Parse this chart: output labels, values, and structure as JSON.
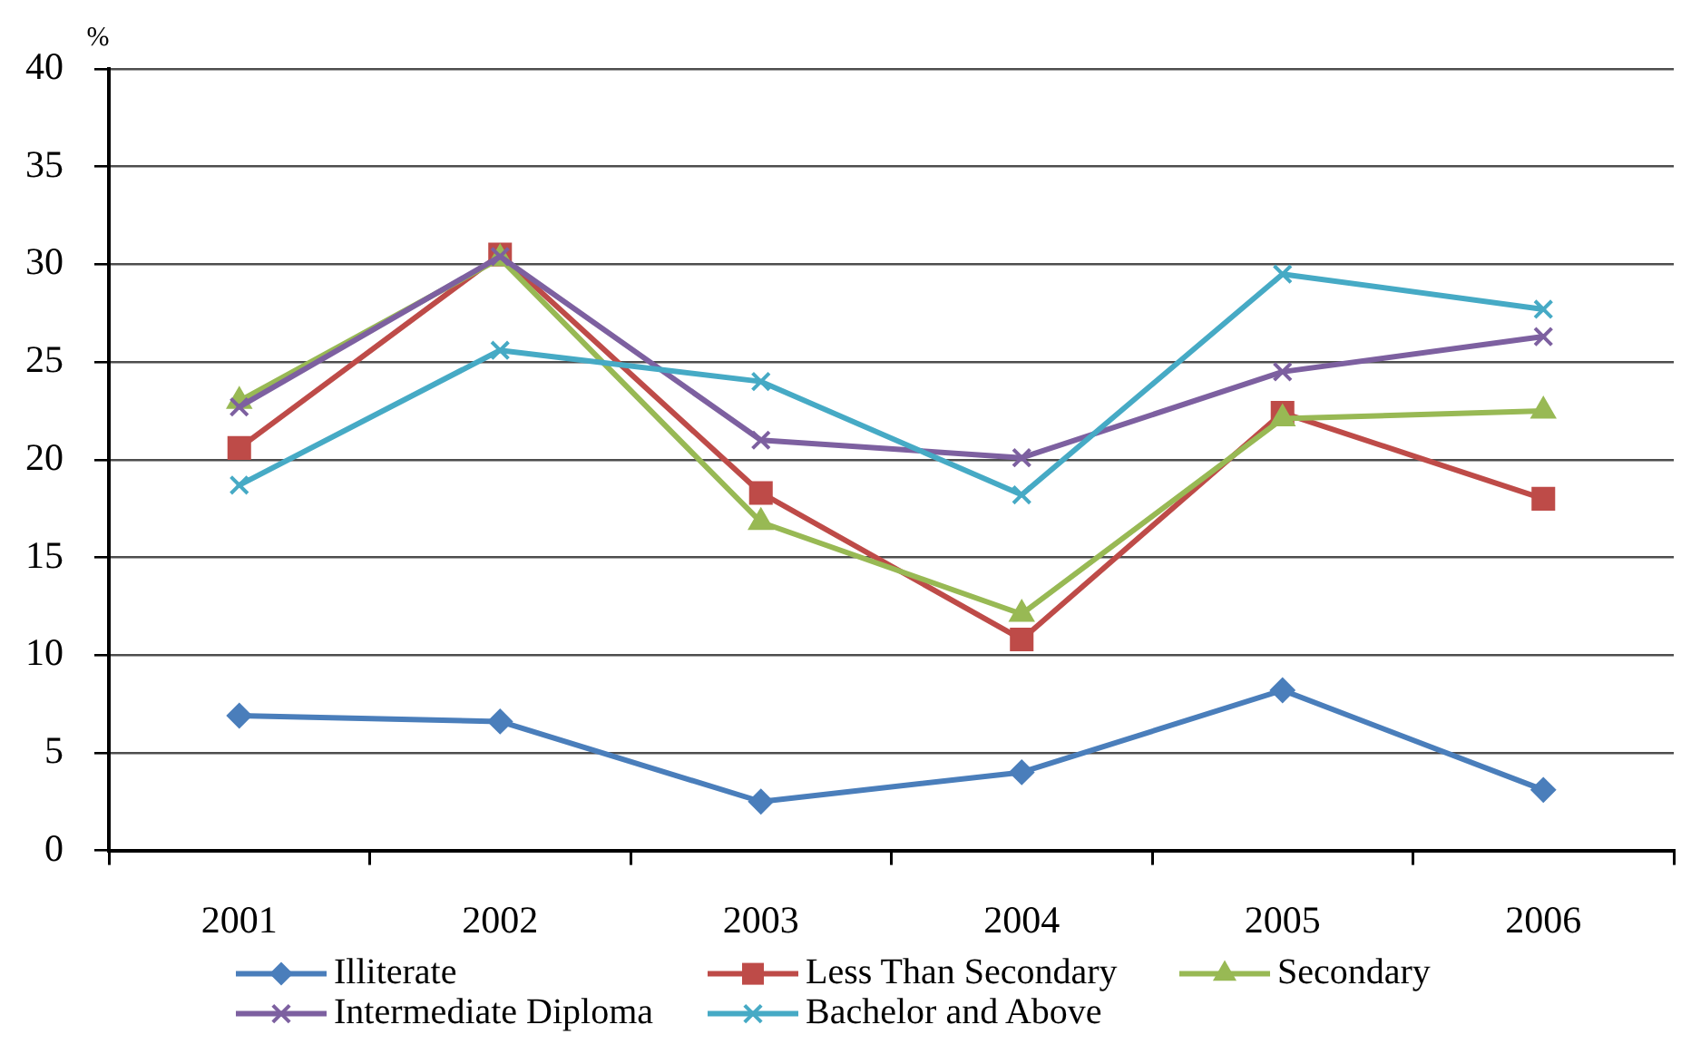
{
  "chart_data": {
    "type": "line",
    "ylabel": "%",
    "categories": [
      "2001",
      "2002",
      "2003",
      "2004",
      "2005",
      "2006"
    ],
    "series": [
      {
        "name": "Illiterate",
        "color": "#4a7ebb",
        "marker": "diamond",
        "values": [
          6.9,
          6.6,
          2.5,
          4.0,
          8.2,
          3.1
        ]
      },
      {
        "name": "Less Than Secondary",
        "color": "#be4b48",
        "marker": "square",
        "values": [
          20.6,
          30.5,
          18.3,
          10.8,
          22.4,
          18.0
        ]
      },
      {
        "name": "Secondary",
        "color": "#98b954",
        "marker": "triangle",
        "values": [
          23.0,
          30.3,
          16.8,
          12.1,
          22.1,
          22.5
        ]
      },
      {
        "name": "Intermediate Diploma",
        "color": "#7d60a0",
        "marker": "cross",
        "values": [
          22.7,
          30.4,
          21.0,
          20.1,
          24.5,
          26.3
        ]
      },
      {
        "name": "Bachelor and Above",
        "color": "#46aac5",
        "marker": "cross",
        "values": [
          18.7,
          25.6,
          24.0,
          18.2,
          29.5,
          27.7
        ]
      }
    ],
    "ylim": [
      0,
      40
    ],
    "yticks": [
      0,
      5,
      10,
      15,
      20,
      25,
      30,
      35,
      40
    ],
    "grid": "y",
    "legend": "bottom",
    "line_style": "solid"
  }
}
